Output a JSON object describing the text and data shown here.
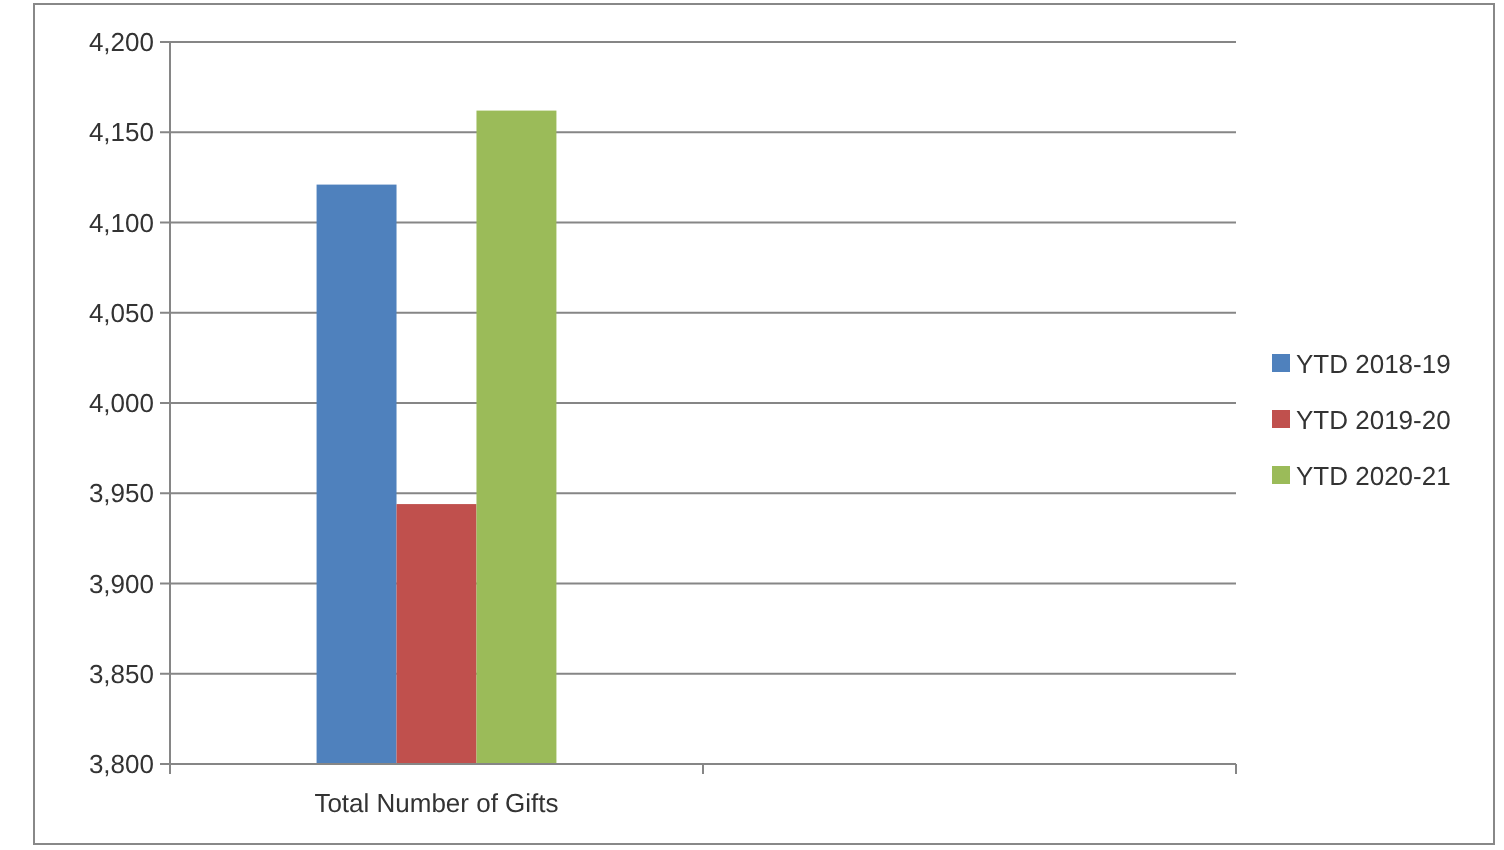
{
  "chart_data": {
    "type": "bar",
    "categories": [
      "Total Number of Gifts",
      null
    ],
    "series": [
      {
        "name": "YTD 2018-19",
        "color": "#4f81bd",
        "values": [
          4121,
          null
        ]
      },
      {
        "name": "YTD 2019-20",
        "color": "#c0504d",
        "values": [
          3944,
          null
        ]
      },
      {
        "name": "YTD 2020-21",
        "color": "#9bbb59",
        "values": [
          4162,
          null
        ]
      }
    ],
    "ylim": [
      3800,
      4200
    ],
    "yticks": [
      {
        "value": 3800,
        "label": "3,800"
      },
      {
        "value": 3850,
        "label": "3,850"
      },
      {
        "value": 3900,
        "label": "3,900"
      },
      {
        "value": 3950,
        "label": "3,950"
      },
      {
        "value": 4000,
        "label": "4,000"
      },
      {
        "value": 4050,
        "label": "4,050"
      },
      {
        "value": 4100,
        "label": "4,100"
      },
      {
        "value": 4150,
        "label": "4,150"
      },
      {
        "value": 4200,
        "label": "4,200"
      }
    ],
    "grid": "y",
    "legend": "right"
  }
}
